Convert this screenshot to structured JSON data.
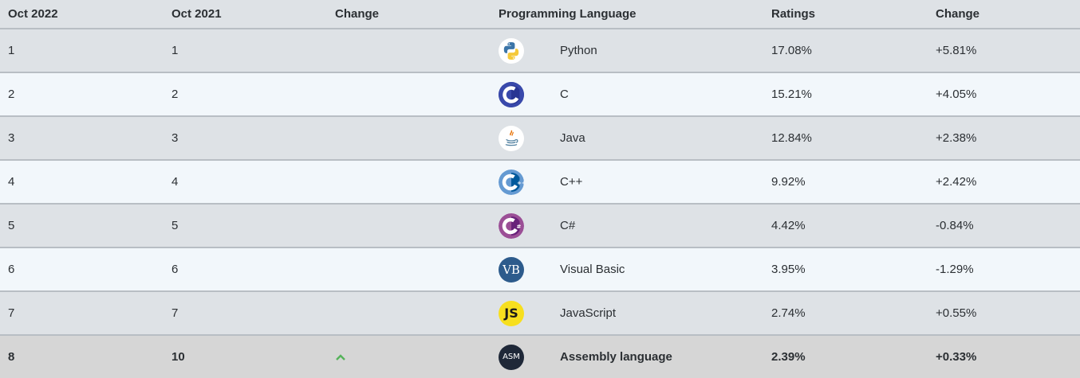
{
  "headers": {
    "col1": "Oct 2022",
    "col2": "Oct 2021",
    "col3": "Change",
    "col4": "Programming Language",
    "col5": "Ratings",
    "col6": "Change"
  },
  "rows": [
    {
      "rank_2022": "1",
      "rank_2021": "1",
      "language": "Python",
      "rating": "17.08%",
      "change": "+5.81%",
      "icon": "python-icon"
    },
    {
      "rank_2022": "2",
      "rank_2021": "2",
      "language": "C",
      "rating": "15.21%",
      "change": "+4.05%",
      "icon": "c-icon"
    },
    {
      "rank_2022": "3",
      "rank_2021": "3",
      "language": "Java",
      "rating": "12.84%",
      "change": "+2.38%",
      "icon": "java-icon"
    },
    {
      "rank_2022": "4",
      "rank_2021": "4",
      "language": "C++",
      "rating": "9.92%",
      "change": "+2.42%",
      "icon": "cpp-icon"
    },
    {
      "rank_2022": "5",
      "rank_2021": "5",
      "language": "C#",
      "rating": "4.42%",
      "change": "-0.84%",
      "icon": "csharp-icon"
    },
    {
      "rank_2022": "6",
      "rank_2021": "6",
      "language": "Visual Basic",
      "rating": "3.95%",
      "change": "-1.29%",
      "icon": "vb-icon",
      "icon_text": "VB"
    },
    {
      "rank_2022": "7",
      "rank_2021": "7",
      "language": "JavaScript",
      "rating": "2.74%",
      "change": "+0.55%",
      "icon": "javascript-icon",
      "icon_text": "JS"
    },
    {
      "rank_2022": "8",
      "rank_2021": "10",
      "trend": "up",
      "language": "Assembly language",
      "rating": "2.39%",
      "change": "+0.33%",
      "icon": "assembly-icon",
      "icon_text": "ASM"
    }
  ],
  "colors": {
    "row_odd": "#dee2e6",
    "row_even": "#f2f7fb",
    "highlight": "#d6d6d6",
    "trend_up": "#55b35a"
  }
}
